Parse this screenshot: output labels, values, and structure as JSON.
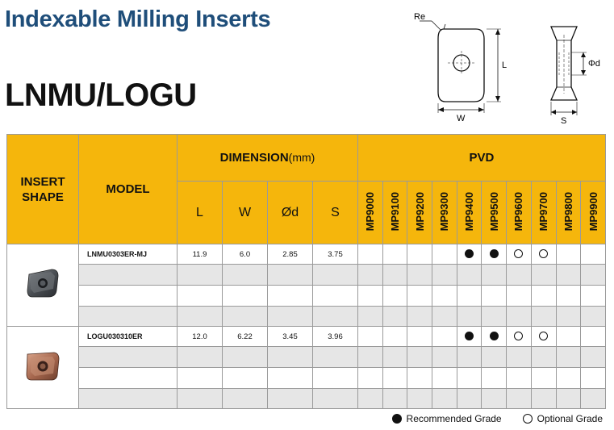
{
  "title": "Indexable Milling Inserts",
  "subtitle": "LNMU/LOGU",
  "diagram": {
    "re": "Re",
    "l": "L",
    "w": "W",
    "d": "Φd",
    "s": "S"
  },
  "table": {
    "insert_shape": "INSERT SHAPE",
    "model": "MODEL",
    "dimension": "DIMENSION",
    "dimension_unit": "(mm)",
    "pvd": "PVD",
    "dim_cols": [
      "L",
      "W",
      "Ød",
      "S"
    ],
    "grades": [
      "MP9000",
      "MP9100",
      "MP9200",
      "MP9300",
      "MP9400",
      "MP9500",
      "MP9600",
      "MP9700",
      "MP9800",
      "MP9900"
    ],
    "products": [
      {
        "model": "LNMU0303ER-MJ",
        "L": "11.9",
        "W": "6.0",
        "d": "2.85",
        "S": "3.75",
        "marks": [
          "",
          "",
          "",
          "",
          "full",
          "full",
          "empty",
          "empty",
          "",
          ""
        ]
      },
      {
        "model": "LOGU030310ER",
        "L": "12.0",
        "W": "6.22",
        "d": "3.45",
        "S": "3.96",
        "marks": [
          "",
          "",
          "",
          "",
          "full",
          "full",
          "empty",
          "empty",
          "",
          ""
        ]
      }
    ]
  },
  "legend": {
    "recommended": "Recommended Grade",
    "optional": "Optional Grade"
  },
  "colors": {
    "header": "#f5b60c",
    "title": "#1f4e7a",
    "alt_row": "#e6e6e6"
  }
}
